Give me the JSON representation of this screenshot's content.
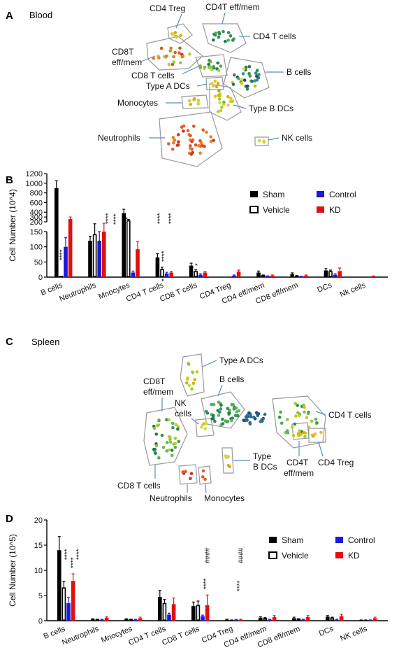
{
  "panels": {
    "A": {
      "letter": "A",
      "title": "Blood",
      "labels": {
        "cd4treg": "CD4 Treg",
        "cd4t_effmem": "CD4T eff/mem",
        "cd4tcells": "CD4 T cells",
        "cd8t_l1": "CD8T",
        "cd8t_l2": "eff/mem",
        "cd8tcells": "CD8 T cells",
        "bcells": "B cells",
        "typeA": "Type A DCs",
        "monocytes": "Monocytes",
        "typeB": "Type  B DCs",
        "neutrophils": "Neutrophils",
        "nk": "NK cells"
      }
    },
    "B": {
      "letter": "B"
    },
    "C": {
      "letter": "C",
      "title": "Spleen",
      "labels": {
        "typeA": "Type A DCs",
        "cd8t_l1": "CD8T",
        "cd8t_l2": "eff/mem",
        "bcells": "B cells",
        "nk_l1": "NK",
        "nk_l2": "cells",
        "cd4tcells": "CD4 T cells",
        "typeB_l1": "Type",
        "typeB_l2": "B DCs",
        "cd4t_l1": "CD4T",
        "cd4t_l2": "eff/mem",
        "cd4treg": "CD4 Treg",
        "cd8tcells": "CD8 T cells",
        "neutrophils": "Neutrophils",
        "monocytes": "Monocytes"
      }
    },
    "D": {
      "letter": "D"
    }
  },
  "chart_data": [
    {
      "type": "bar",
      "panel": "B",
      "ylabel": "Cell Number (10^4)",
      "axis_break": true,
      "lower_ylim": [
        0,
        150
      ],
      "upper_ylim": [
        200,
        1200
      ],
      "lower_ticks": [
        0,
        50,
        100,
        150
      ],
      "upper_ticks": [
        200,
        300,
        400,
        600,
        800,
        1000,
        1200
      ],
      "categories": [
        "B cells",
        "Neutrophils",
        "Mnocytes",
        "CD4 T cells",
        "CD8 T cells",
        "CD4 Treg",
        "CD4 eff/mem",
        "CD8 eff/mem",
        "DCs",
        "Nk cells"
      ],
      "series": [
        {
          "name": "Sham",
          "color": "#000000",
          "fill": "solid",
          "values": [
            900,
            120,
            380,
            65,
            38,
            0,
            15,
            10,
            22,
            0
          ],
          "errors": [
            150,
            15,
            80,
            12,
            8,
            0,
            5,
            4,
            6,
            0
          ]
        },
        {
          "name": "Vehicle",
          "color": "#000000",
          "fill": "open",
          "values": [
            2,
            140,
            220,
            25,
            18,
            0,
            5,
            3,
            18,
            0
          ],
          "errors": [
            1,
            20,
            30,
            8,
            6,
            0,
            2,
            2,
            5,
            0
          ]
        },
        {
          "name": "Control",
          "color": "#1a1ad9",
          "fill": "solid",
          "values": [
            100,
            120,
            15,
            12,
            8,
            5,
            3,
            2,
            8,
            0
          ],
          "errors": [
            30,
            30,
            5,
            4,
            3,
            2,
            1,
            1,
            3,
            0
          ]
        },
        {
          "name": "KD",
          "color": "#e01010",
          "fill": "solid",
          "values": [
            260,
            150,
            92,
            15,
            15,
            18,
            5,
            5,
            20,
            3
          ],
          "errors": [
            40,
            20,
            25,
            4,
            4,
            5,
            2,
            2,
            10,
            1
          ]
        }
      ],
      "legend": {
        "position": "top-right"
      },
      "annotations": [
        "****",
        "****",
        "****",
        "*",
        "****",
        "****",
        "*",
        "****",
        "*"
      ]
    },
    {
      "type": "bar",
      "panel": "D",
      "ylabel": "Cell Number (10^5)",
      "ylim": [
        0,
        20
      ],
      "yticks": [
        0,
        5,
        10,
        15,
        20
      ],
      "categories": [
        "B cells",
        "Neutrophils",
        "Mnocytes",
        "CD4 T cells",
        "CD8 T cells",
        "CD4 Treg",
        "CD4 eff/mem",
        "CD8 eff/mem",
        "DCs",
        "NK cells"
      ],
      "series": [
        {
          "name": "Sham",
          "color": "#000000",
          "fill": "solid",
          "values": [
            14.0,
            0.3,
            0.3,
            4.7,
            2.9,
            0.2,
            0.6,
            0.5,
            0.8,
            0.1
          ],
          "errors": [
            2.7,
            0.1,
            0.1,
            1.3,
            0.8,
            0.1,
            0.2,
            0.2,
            0.2,
            0.05
          ]
        },
        {
          "name": "Vehicle",
          "color": "#000000",
          "fill": "open",
          "values": [
            6.5,
            0.2,
            0.2,
            3.4,
            3.0,
            0.1,
            0.4,
            0.3,
            0.5,
            0.1
          ],
          "errors": [
            1.3,
            0.1,
            0.1,
            0.8,
            0.9,
            0.05,
            0.2,
            0.1,
            0.2,
            0.05
          ]
        },
        {
          "name": "Control",
          "color": "#1a1ad9",
          "fill": "solid",
          "values": [
            3.5,
            0.2,
            0.2,
            1.2,
            0.9,
            0.2,
            0.2,
            0.2,
            0.2,
            0.1
          ],
          "errors": [
            1.1,
            0.1,
            0.1,
            0.3,
            0.2,
            0.05,
            0.1,
            0.1,
            0.1,
            0.05
          ]
        },
        {
          "name": "KD",
          "color": "#e01010",
          "fill": "solid",
          "values": [
            7.9,
            0.6,
            0.5,
            3.3,
            3.1,
            0.2,
            0.7,
            0.7,
            0.9,
            0.5
          ],
          "errors": [
            1.4,
            0.2,
            0.2,
            1.2,
            2.0,
            0.1,
            0.3,
            0.3,
            0.4,
            0.2
          ]
        }
      ],
      "legend": {
        "position": "top-right"
      },
      "annotations": [
        "****",
        "****",
        "****",
        "****",
        "####",
        "****",
        "####"
      ]
    }
  ]
}
